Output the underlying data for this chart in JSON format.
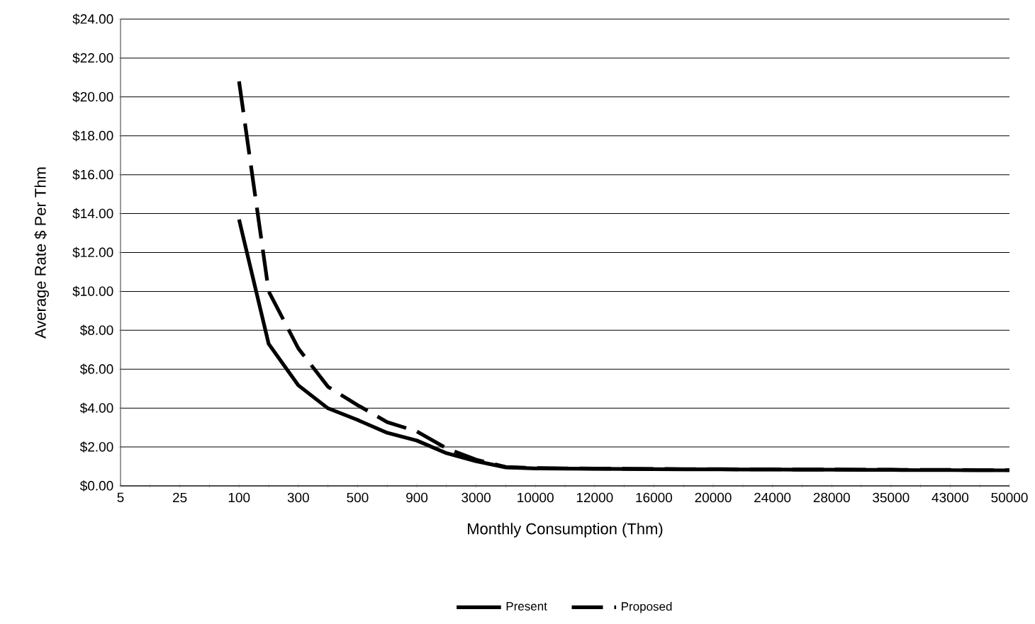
{
  "chart_data": {
    "type": "line",
    "xlabel": "Monthly Consumption (Thm)",
    "ylabel": "Average Rate $ Per Thm",
    "categories": [
      "5",
      null,
      "25",
      null,
      "100",
      null,
      "300",
      null,
      "500",
      null,
      "900",
      null,
      "3000",
      null,
      "10000",
      null,
      "12000",
      null,
      "16000",
      null,
      "20000",
      null,
      "24000",
      null,
      "28000",
      null,
      "35000",
      null,
      "43000",
      null,
      "50000"
    ],
    "series": [
      {
        "name": "Present",
        "color": "#000000",
        "line_style": "solid",
        "values": [
          null,
          null,
          null,
          null,
          13.7,
          7.3,
          5.17,
          3.99,
          3.39,
          2.73,
          2.33,
          1.68,
          1.27,
          0.95,
          0.9,
          0.89,
          0.88,
          0.87,
          0.86,
          0.85,
          0.85,
          0.84,
          0.84,
          0.83,
          0.83,
          0.82,
          0.82,
          0.81,
          0.81,
          0.8,
          0.8
        ]
      },
      {
        "name": "Proposed",
        "color": "#000000",
        "line_style": "dashed",
        "values": [
          null,
          null,
          null,
          null,
          20.8,
          10.0,
          7.07,
          5.1,
          4.15,
          3.28,
          2.8,
          1.93,
          1.35,
          0.97,
          0.92,
          0.9,
          0.89,
          0.88,
          0.87,
          0.86,
          0.86,
          0.85,
          0.85,
          0.84,
          0.84,
          0.83,
          0.83,
          0.82,
          0.82,
          0.81,
          0.81
        ]
      }
    ],
    "ylim": [
      0,
      24
    ],
    "yticks": [
      {
        "value": 0,
        "label": "$0.00"
      },
      {
        "value": 2,
        "label": "$2.00"
      },
      {
        "value": 4,
        "label": "$4.00"
      },
      {
        "value": 6,
        "label": "$6.00"
      },
      {
        "value": 8,
        "label": "$8.00"
      },
      {
        "value": 10,
        "label": "$10.00"
      },
      {
        "value": 12,
        "label": "$12.00"
      },
      {
        "value": 14,
        "label": "$14.00"
      },
      {
        "value": 16,
        "label": "$16.00"
      },
      {
        "value": 18,
        "label": "$18.00"
      },
      {
        "value": 20,
        "label": "$20.00"
      },
      {
        "value": 22,
        "label": "$22.00"
      },
      {
        "value": 24,
        "label": "$24.00"
      }
    ],
    "grid": "y",
    "legend": "bottom",
    "marker": "none"
  }
}
